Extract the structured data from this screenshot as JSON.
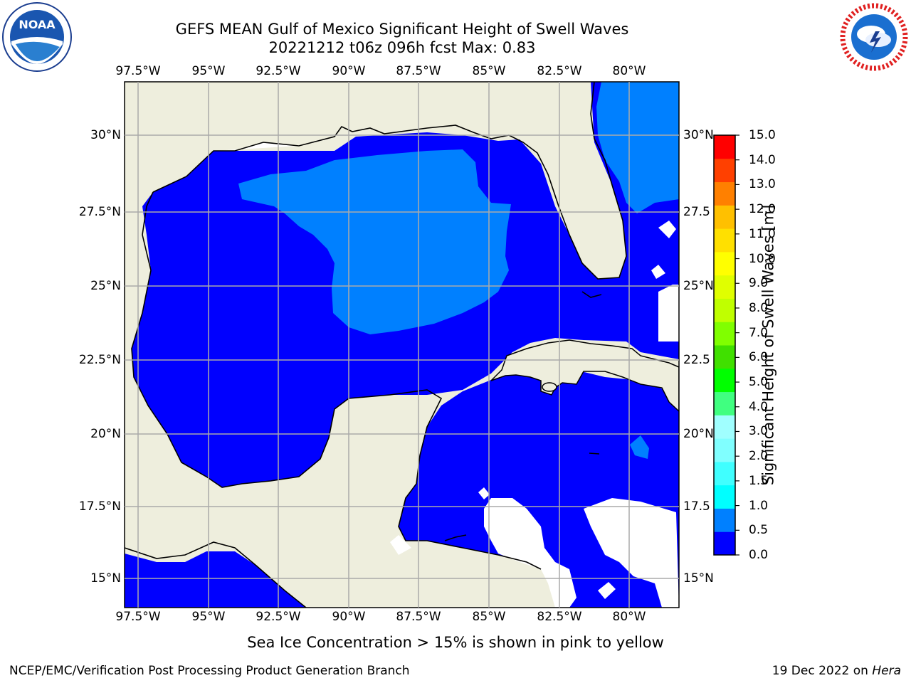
{
  "title": {
    "line1": "GEFS MEAN Gulf of Mexico Significant Height of Swell Waves",
    "line2": "20221212 t06z 096h fcst   Max: 0.83"
  },
  "logos": {
    "left": "NOAA",
    "right": "NATIONAL WEATHER SERVICE"
  },
  "map": {
    "lon_range": [
      -98.5,
      -78.75
    ],
    "lat_range": [
      14.0,
      31.75
    ],
    "lon_labels": [
      "97.5°W",
      "95°W",
      "92.5°W",
      "90°W",
      "87.5°W",
      "85°W",
      "82.5°W",
      "80°W"
    ],
    "lat_labels": [
      "30°N",
      "27.5°N",
      "25°N",
      "22.5°N",
      "20°N",
      "17.5°N",
      "15°N"
    ],
    "right_lat_labels": [
      "30°N",
      "27.5",
      "25°N",
      "22.5",
      "20°N",
      "17.5",
      "15°N"
    ],
    "land_color": "#eeeedd",
    "grid_color": "#aaaaaa"
  },
  "colorbar": {
    "label": "Significant Height of Swell Waves [m]",
    "ticks": [
      "15.0",
      "14.0",
      "13.0",
      "12.0",
      "11.0",
      "10.0",
      "9.0",
      "8.0",
      "7.0",
      "6.0",
      "5.0",
      "4.0",
      "3.0",
      "2.0",
      "1.5",
      "1.0",
      "0.5",
      "0.0"
    ],
    "colors": [
      "#0000ff",
      "#0080ff",
      "#00ffff",
      "#40ffff",
      "#80ffff",
      "#a0ffff",
      "#40ff80",
      "#00ff00",
      "#40e000",
      "#80ff00",
      "#c0ff00",
      "#e0ff00",
      "#ffff00",
      "#ffe000",
      "#ffc000",
      "#ff8000",
      "#ff4000",
      "#ff0000"
    ]
  },
  "note": "Sea Ice Concentration > 15% is shown in pink to yellow",
  "footer": {
    "left": "NCEP/EMC/Verification Post Processing Product Generation Branch",
    "right_date": "19 Dec 2022 on ",
    "right_host": "Hera"
  }
}
